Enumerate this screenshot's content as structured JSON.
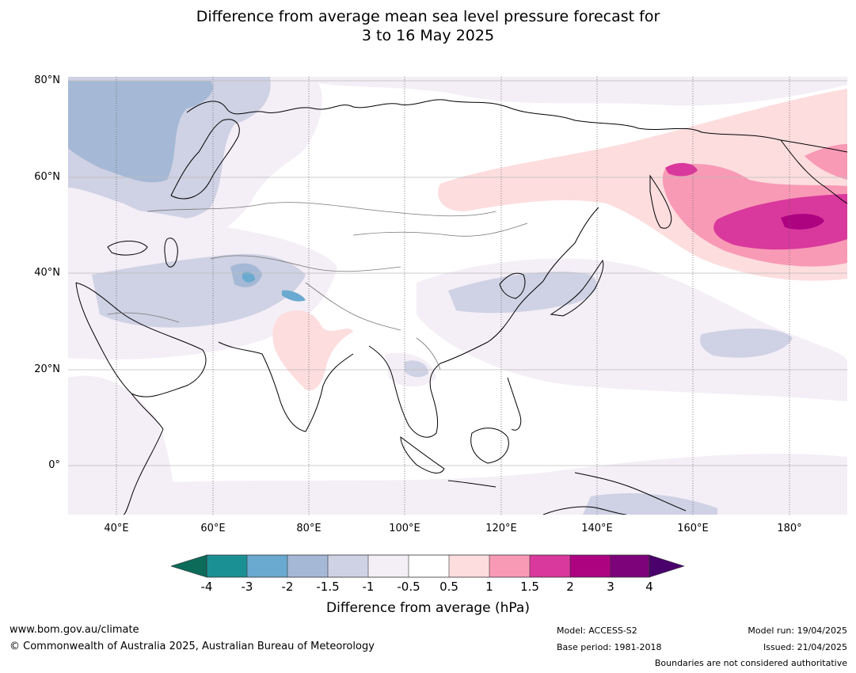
{
  "title_line1": "Difference from average mean sea level pressure forecast for",
  "title_line2": "3 to 16 May 2025",
  "map": {
    "lat_labels": [
      "80°N",
      "60°N",
      "40°N",
      "20°N",
      "0°"
    ],
    "lon_labels": [
      "40°E",
      "60°E",
      "80°E",
      "100°E",
      "120°E",
      "140°E",
      "160°E",
      "180°"
    ],
    "extent": {
      "lon_min": 30,
      "lon_max": 192,
      "lat_min": -10,
      "lat_max": 81
    },
    "colors": {
      "n4": "#0d6b5a",
      "n3": "#1b9094",
      "n2": "#6aa9d0",
      "n15": "#a5b9d6",
      "n1": "#cfd1e4",
      "n05": "#f4eef6",
      "zero": "#ffffff",
      "p05": "#fdddde",
      "p1": "#f89ab6",
      "p15": "#d9389c",
      "p2": "#ad0381",
      "p3": "#7d037b",
      "p4": "#4a016b"
    }
  },
  "colorbar": {
    "ticks": [
      "-4",
      "-3",
      "-2",
      "-1.5",
      "-1",
      "-0.5",
      "0.5",
      "1",
      "1.5",
      "2",
      "3",
      "4"
    ],
    "label": "Difference from average (hPa)"
  },
  "footer": {
    "url": "www.bom.gov.au/climate",
    "copyright": "© Commonwealth of Australia 2025, Australian Bureau of Meteorology",
    "model": "Model: ACCESS-S2",
    "base_period": "Base period: 1981-2018",
    "model_run": "Model run: 19/04/2025",
    "issued": "Issued: 21/04/2025",
    "disclaimer": "Boundaries are not considered authoritative"
  }
}
